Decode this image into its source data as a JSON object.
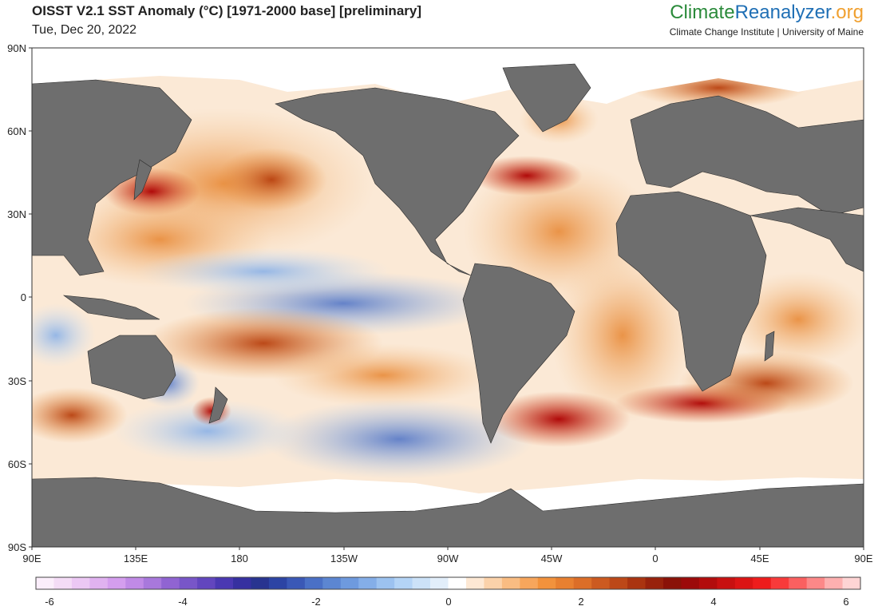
{
  "header": {
    "title": "OISST V2.1 SST Anomaly (°C) [1971-2000 base] [preliminary]",
    "date": "Tue, Dec 20, 2022"
  },
  "brand": {
    "part1": "Climate",
    "part2": "Reanalyzer",
    "part3": ".org",
    "subtitle": "Climate Change Institute | University of Maine",
    "colors": {
      "climate": "#2a8a3a",
      "reanalyzer": "#1f6fb5",
      "org": "#f0a030"
    }
  },
  "map": {
    "y_axis_labels": [
      "90N",
      "60N",
      "30N",
      "0",
      "30S",
      "60S",
      "90S"
    ],
    "x_axis_labels": [
      "90E",
      "135E",
      "180",
      "135W",
      "90W",
      "45W",
      "0",
      "45E",
      "90E"
    ],
    "land_color": "#6e6e6e",
    "ocean_neutral_color": "#ffffff"
  },
  "colorbar": {
    "labels": [
      "-6",
      "-4",
      "-2",
      "0",
      "2",
      "4",
      "6"
    ],
    "min": -6,
    "max": 6,
    "colors": [
      "#fbeefb",
      "#f4dcf6",
      "#ecc8f4",
      "#e0b2f0",
      "#d49eee",
      "#c08ae6",
      "#a878dc",
      "#9064d2",
      "#7856c8",
      "#6246be",
      "#4a38b2",
      "#3630a0",
      "#283490",
      "#2c44a4",
      "#3a58b6",
      "#4a70c6",
      "#5c86d2",
      "#6e9ade",
      "#84aee8",
      "#9cc2f0",
      "#b4d4f6",
      "#cce2f8",
      "#e2eefa",
      "#ffffff",
      "#fde8d4",
      "#fbd2aa",
      "#f9bc82",
      "#f7a65c",
      "#f2923c",
      "#e88030",
      "#dc6e28",
      "#cc5a20",
      "#bc4818",
      "#aa3410",
      "#98220c",
      "#8a1208",
      "#9c0a0a",
      "#b20c0c",
      "#c81010",
      "#dc1414",
      "#ee1c1c",
      "#f83a3a",
      "#fa6060",
      "#fc8888",
      "#fdb0b0",
      "#fed4d4"
    ]
  }
}
